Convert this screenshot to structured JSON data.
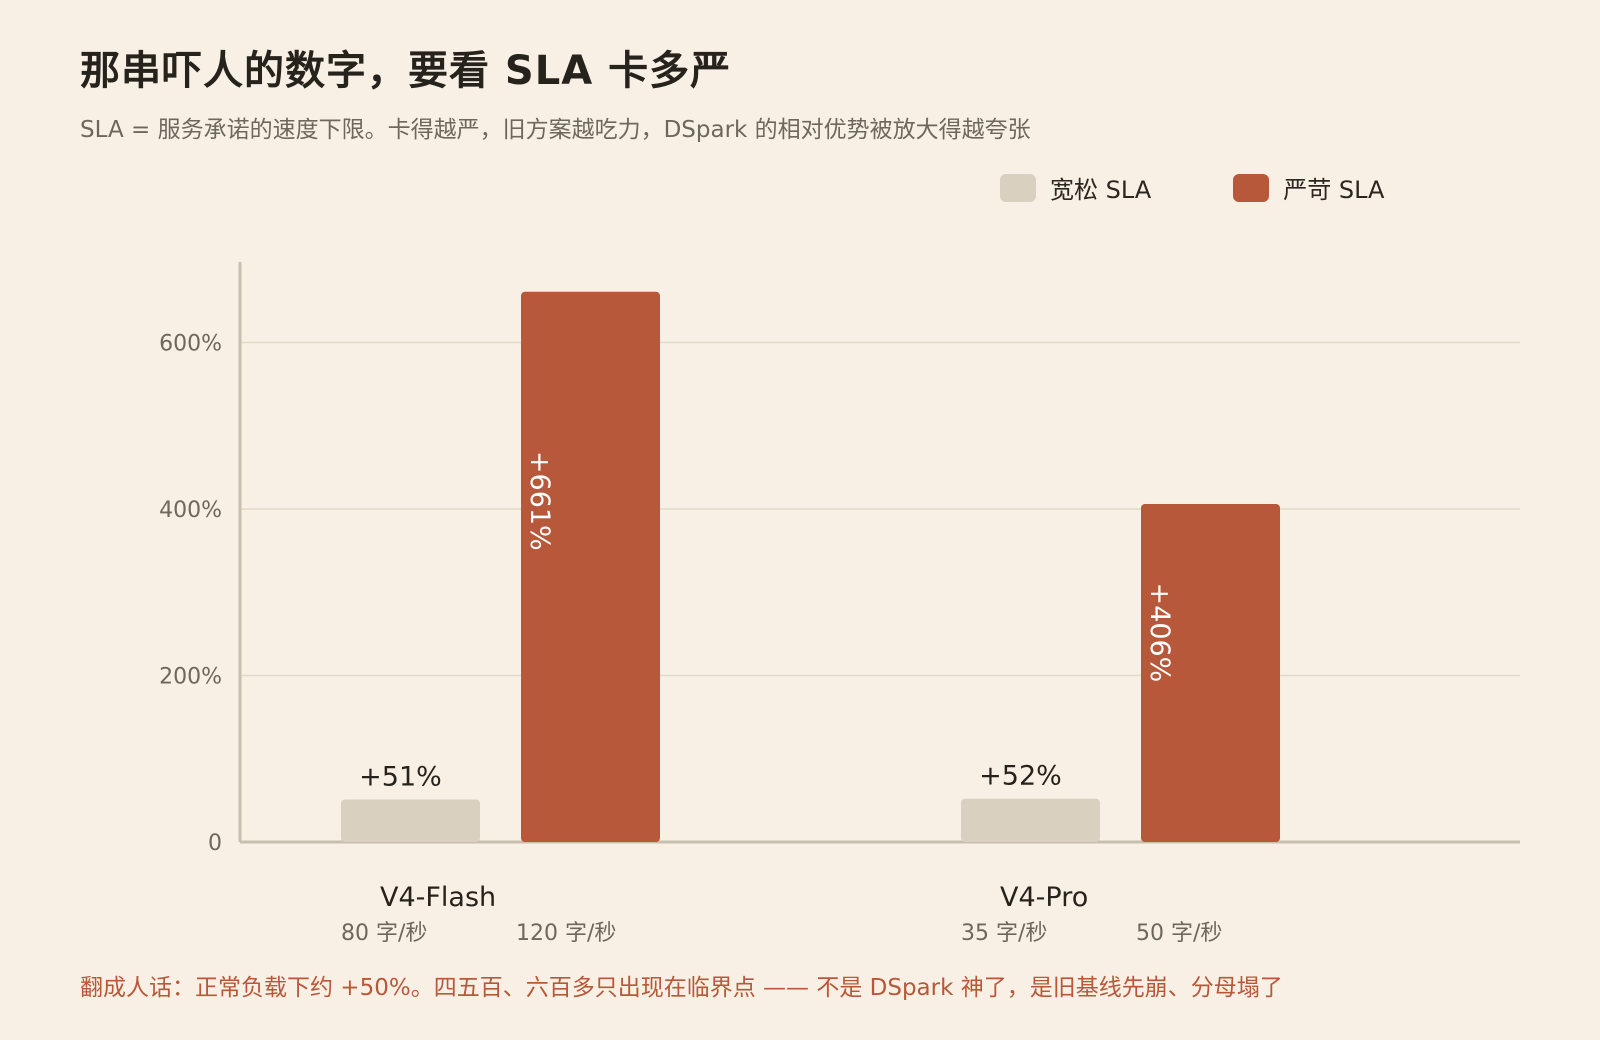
{
  "title": "那串吓人的数字，要看 SLA 卡多严",
  "subtitle": "SLA = 服务承诺的速度下限。卡得越严，旧方案越吃力，DSpark 的相对优势被放大得越夸张",
  "footnote": "翻成人话：正常负载下约 +50%。四五百、六百多只出现在临界点 —— 不是 DSpark 神了，是旧基线先崩、分母塌了",
  "colors": {
    "background": "#f8f0e5",
    "loose": "#d9d0bf",
    "strict": "#b8583a",
    "grid": "#e2d9c8",
    "axis": "#c8bfae"
  },
  "chart_data": {
    "type": "bar",
    "title": "那串吓人的数字，要看 SLA 卡多严",
    "ylabel": "",
    "xlabel": "",
    "ylim": [
      0,
      700
    ],
    "yticks": [
      0,
      200,
      400,
      600
    ],
    "ytick_labels": [
      "0",
      "200%",
      "400%",
      "600%"
    ],
    "grid": true,
    "legend_position": "top-right",
    "categories": [
      "V4-Flash",
      "V4-Pro"
    ],
    "series": [
      {
        "name": "宽松 SLA",
        "color": "#d9d0bf",
        "values": [
          51,
          52
        ],
        "value_labels": [
          "+51%",
          "+52%"
        ],
        "sublabels": [
          "80 字/秒",
          "35 字/秒"
        ]
      },
      {
        "name": "严苛 SLA",
        "color": "#b8583a",
        "values": [
          661,
          406
        ],
        "value_labels": [
          "+661%",
          "+406%"
        ],
        "sublabels": [
          "120 字/秒",
          "50 字/秒"
        ]
      }
    ]
  }
}
